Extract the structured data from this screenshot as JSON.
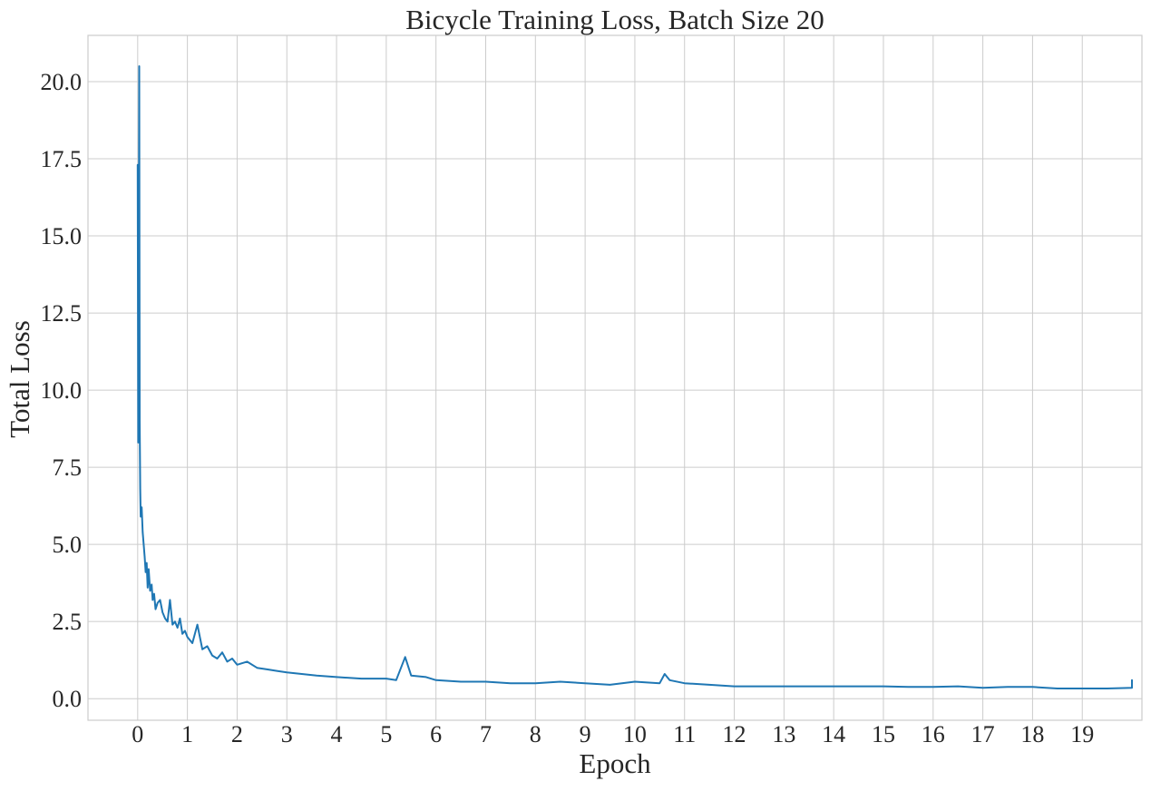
{
  "chart_data": {
    "type": "line",
    "title": "Bicycle Training Loss, Batch Size 20",
    "xlabel": "Epoch",
    "ylabel": "Total Loss",
    "xlim": [
      -1,
      20.2
    ],
    "ylim": [
      -0.7,
      21.5
    ],
    "x_ticks": [
      0,
      1,
      2,
      3,
      4,
      5,
      6,
      7,
      8,
      9,
      10,
      11,
      12,
      13,
      14,
      15,
      16,
      17,
      18,
      19
    ],
    "x_tick_labels": [
      "0",
      "1",
      "2",
      "3",
      "4",
      "5",
      "6",
      "7",
      "8",
      "9",
      "10",
      "11",
      "12",
      "13",
      "14",
      "15",
      "16",
      "17",
      "18",
      "19"
    ],
    "y_ticks": [
      0.0,
      2.5,
      5.0,
      7.5,
      10.0,
      12.5,
      15.0,
      17.5,
      20.0
    ],
    "y_tick_labels": [
      "0.0",
      "2.5",
      "5.0",
      "7.5",
      "10.0",
      "12.5",
      "15.0",
      "17.5",
      "20.0"
    ],
    "grid": true,
    "series_color": "#1f77b4",
    "series": [
      {
        "x": [
          0.0,
          0.01,
          0.02,
          0.03,
          0.04,
          0.05,
          0.06,
          0.08,
          0.1,
          0.12,
          0.14,
          0.16,
          0.18,
          0.2,
          0.22,
          0.25,
          0.28,
          0.3,
          0.33,
          0.36,
          0.4,
          0.45,
          0.5,
          0.55,
          0.6,
          0.65,
          0.7,
          0.75,
          0.8,
          0.85,
          0.9,
          0.95,
          1.0,
          1.1,
          1.2,
          1.3,
          1.4,
          1.5,
          1.6,
          1.7,
          1.8,
          1.9,
          2.0,
          2.2,
          2.4,
          2.6,
          2.8,
          3.0,
          3.3,
          3.6,
          4.0,
          4.5,
          5.0,
          5.2,
          5.38,
          5.5,
          5.8,
          6.0,
          6.5,
          7.0,
          7.5,
          8.0,
          8.5,
          9.0,
          9.5,
          10.0,
          10.5,
          10.6,
          10.7,
          11.0,
          11.5,
          12.0,
          12.5,
          13.0,
          13.5,
          14.0,
          14.5,
          15.0,
          15.5,
          16.0,
          16.5,
          17.0,
          17.5,
          18.0,
          18.5,
          19.0,
          19.5,
          20.0,
          20.0
        ],
        "y": [
          17.3,
          8.3,
          12.0,
          20.5,
          9.0,
          6.8,
          5.9,
          6.2,
          5.4,
          5.0,
          4.6,
          4.1,
          4.4,
          3.6,
          4.2,
          3.5,
          3.7,
          3.2,
          3.4,
          2.9,
          3.1,
          3.2,
          2.8,
          2.6,
          2.5,
          3.2,
          2.4,
          2.5,
          2.3,
          2.6,
          2.1,
          2.2,
          2.0,
          1.8,
          2.4,
          1.6,
          1.7,
          1.4,
          1.3,
          1.5,
          1.2,
          1.3,
          1.1,
          1.2,
          1.0,
          0.95,
          0.9,
          0.85,
          0.8,
          0.75,
          0.7,
          0.65,
          0.65,
          0.6,
          1.35,
          0.75,
          0.7,
          0.6,
          0.55,
          0.55,
          0.5,
          0.5,
          0.55,
          0.5,
          0.45,
          0.55,
          0.5,
          0.8,
          0.6,
          0.5,
          0.45,
          0.4,
          0.4,
          0.4,
          0.4,
          0.4,
          0.4,
          0.4,
          0.38,
          0.38,
          0.4,
          0.35,
          0.38,
          0.38,
          0.33,
          0.33,
          0.33,
          0.35,
          0.6
        ]
      }
    ]
  }
}
